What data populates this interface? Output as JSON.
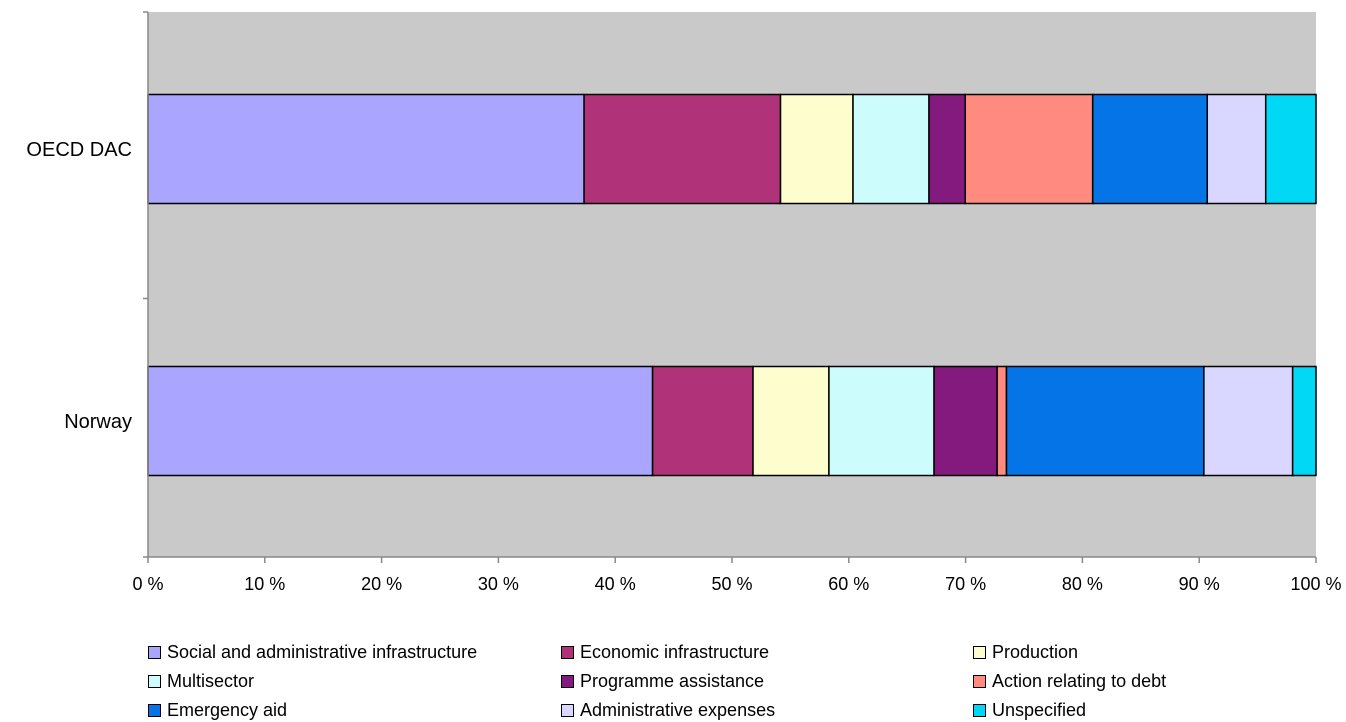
{
  "chart_data": {
    "type": "bar",
    "orientation": "horizontal",
    "stacked": "percent",
    "categories": [
      "OECD DAC",
      "Norway"
    ],
    "series": [
      {
        "name": "Social and administrative infrastructure",
        "color": "#aaa6ff",
        "values": [
          37.3,
          43.2
        ]
      },
      {
        "name": "Economic infrastructure",
        "color": "#b03278",
        "values": [
          16.8,
          8.6
        ]
      },
      {
        "name": "Production",
        "color": "#fdfdcd",
        "values": [
          6.2,
          6.5
        ]
      },
      {
        "name": "Multisector",
        "color": "#ccfdfc",
        "values": [
          6.5,
          9.0
        ]
      },
      {
        "name": "Programme assistance",
        "color": "#841a7d",
        "values": [
          3.1,
          5.4
        ]
      },
      {
        "name": "Action relating to debt",
        "color": "#ff8a80",
        "values": [
          10.9,
          0.8
        ]
      },
      {
        "name": "Emergency aid",
        "color": "#0474e6",
        "values": [
          9.8,
          16.9
        ]
      },
      {
        "name": "Administrative expenses",
        "color": "#d9d6ff",
        "values": [
          5.0,
          7.6
        ]
      },
      {
        "name": "Unspecified",
        "color": "#00d8f5",
        "values": [
          4.3,
          2.0
        ]
      }
    ],
    "x_ticks": [
      "0 %",
      "10 %",
      "20 %",
      "30 %",
      "40 %",
      "50 %",
      "60 %",
      "70 %",
      "80 %",
      "90 %",
      "100 %"
    ],
    "xlim": [
      0,
      100
    ],
    "plot_background": "#c9c9c9",
    "grid": false,
    "legend_position": "bottom"
  }
}
